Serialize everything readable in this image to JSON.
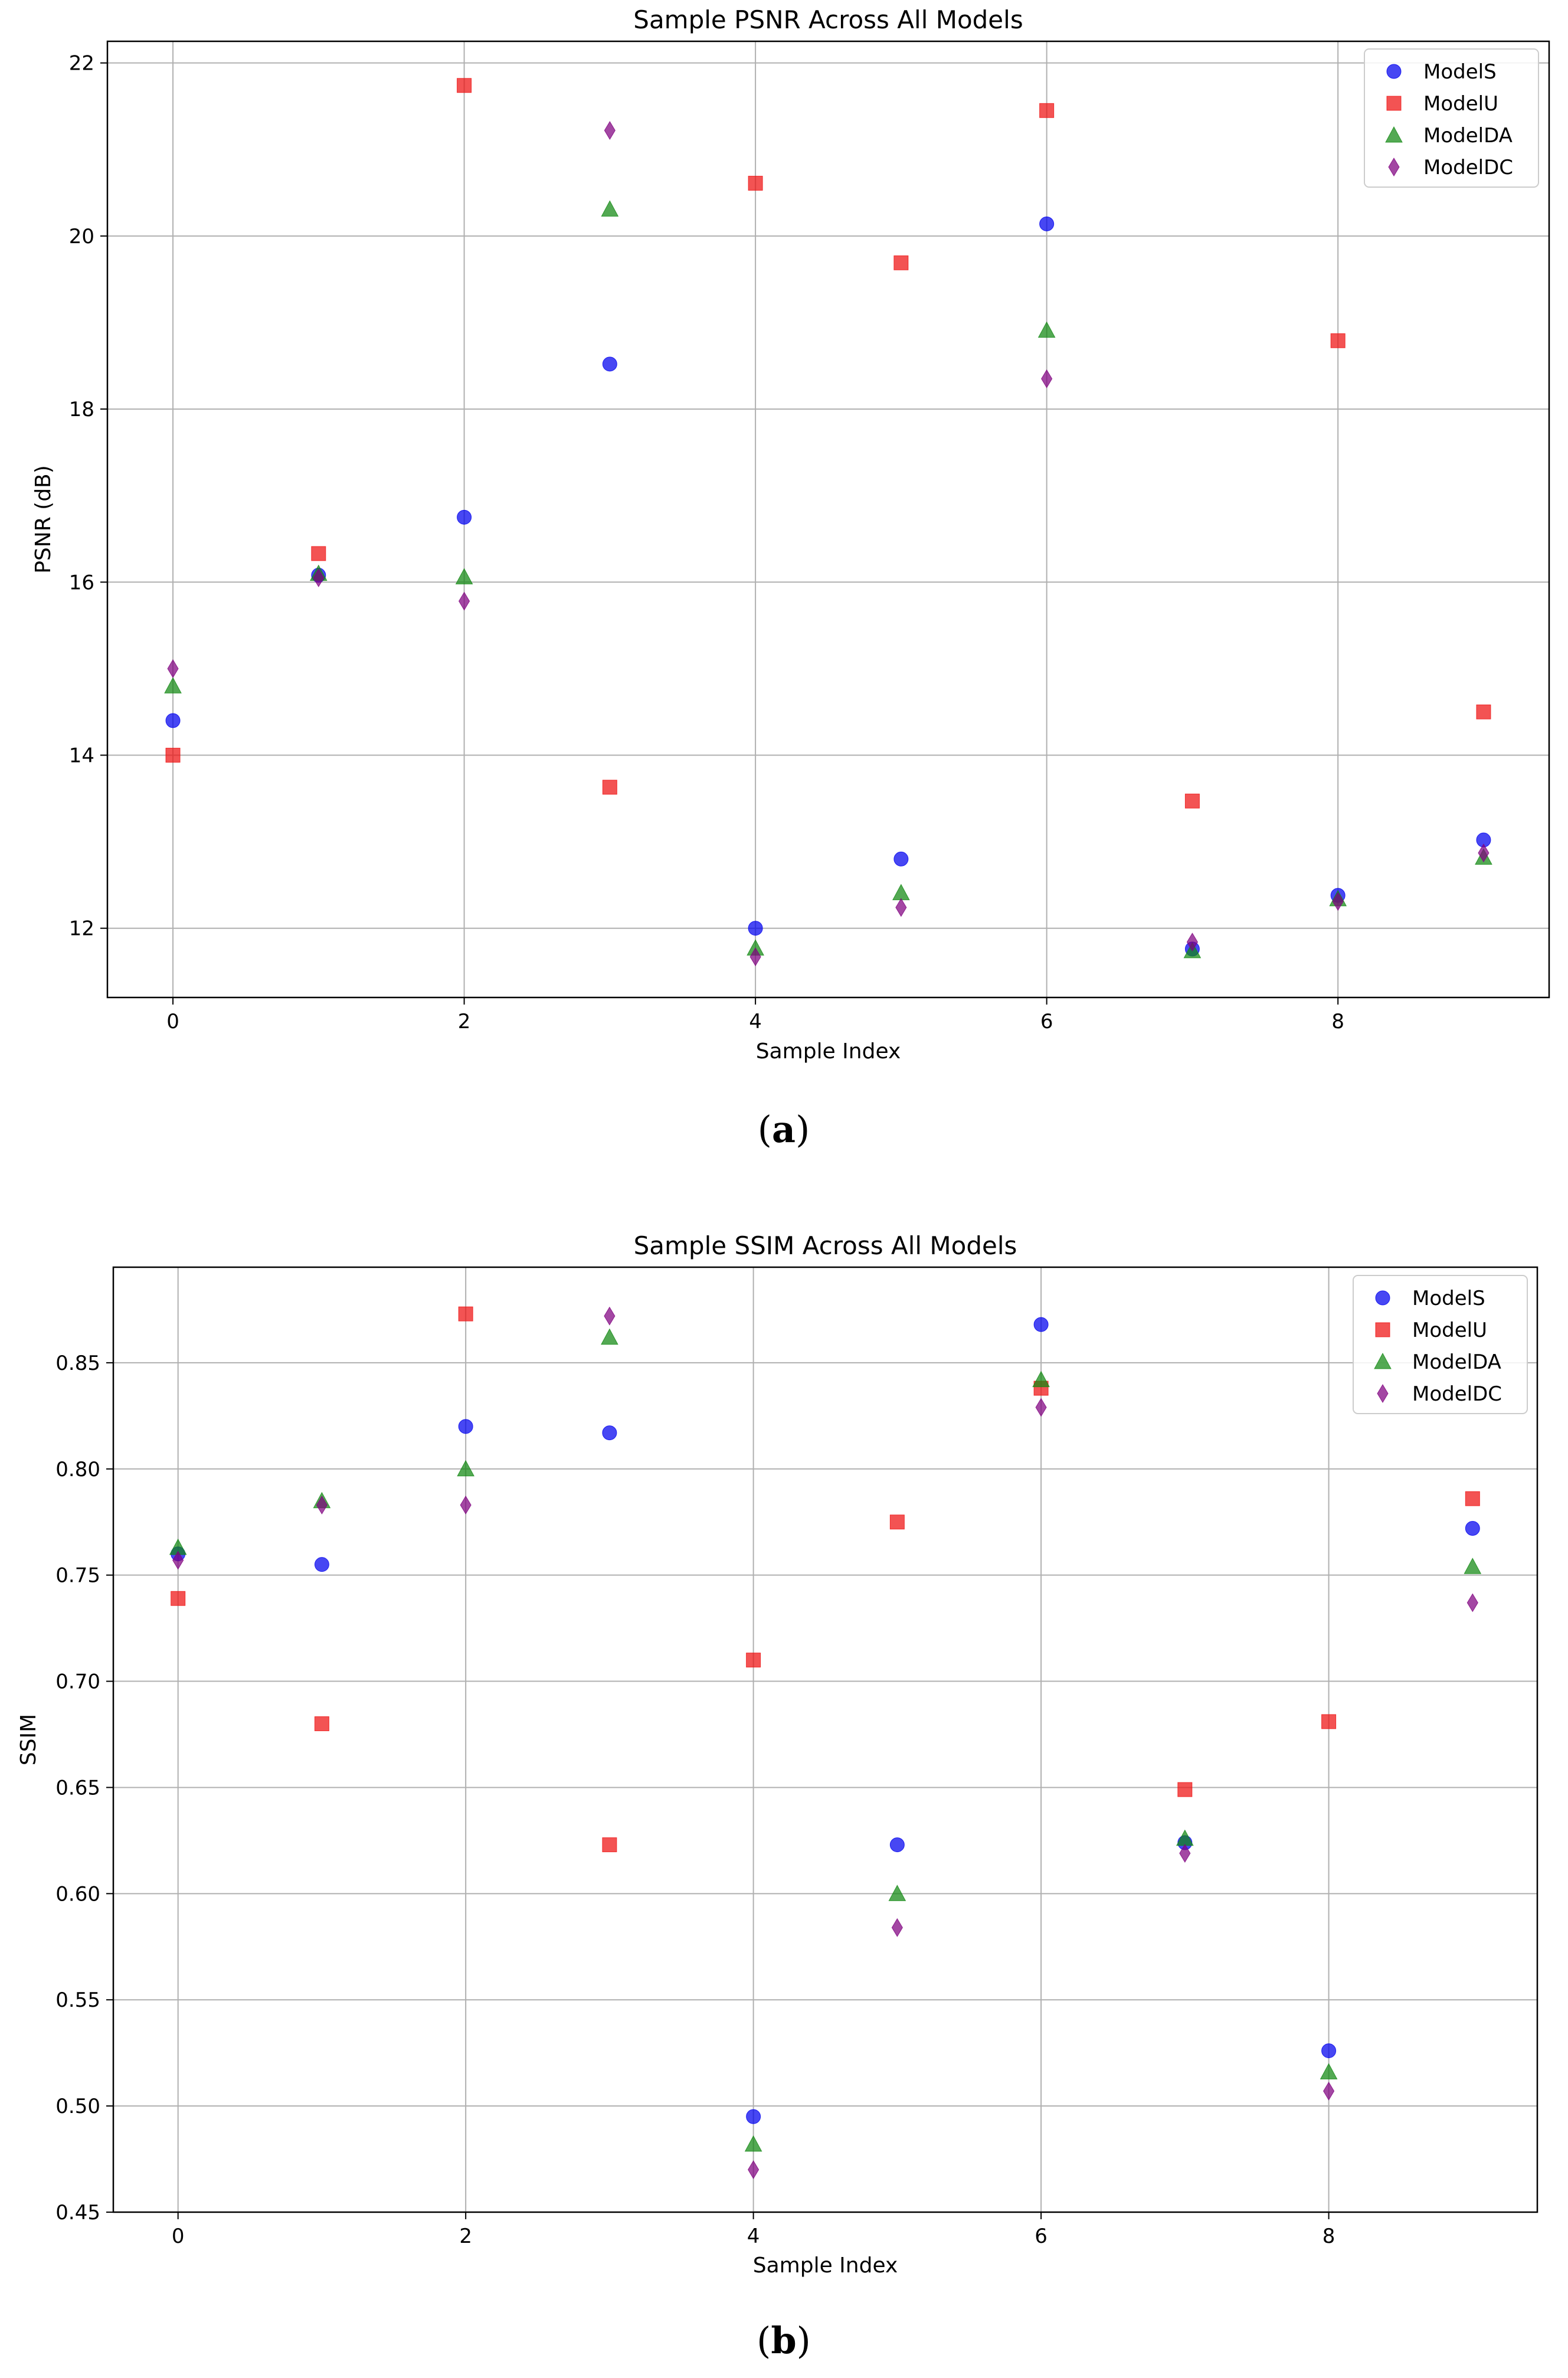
{
  "colors": {
    "ModelS": "#0000ee",
    "ModelU": "#ee1111",
    "ModelDA": "#118811",
    "ModelDC": "#800080",
    "grid": "#b0b0b0",
    "axis": "#000000"
  },
  "chart_data": [
    {
      "type": "scatter",
      "title": "Sample PSNR Across All Models",
      "xlabel": "Sample Index",
      "ylabel": "PSNR (dB)",
      "xlim": [
        -0.45,
        9.45
      ],
      "ylim": [
        11.2,
        22.25
      ],
      "xticks": [
        0,
        2,
        4,
        6,
        8
      ],
      "yticks": [
        12,
        14,
        16,
        18,
        20,
        22
      ],
      "grid": true,
      "legend_position": "top-right",
      "caption_prefix": "(",
      "caption_letter": "a",
      "caption_suffix": ")",
      "x": [
        0,
        1,
        2,
        3,
        4,
        5,
        6,
        7,
        8,
        9
      ],
      "series": [
        {
          "name": "ModelS",
          "marker": "circle",
          "values": [
            14.4,
            16.08,
            16.75,
            18.52,
            12.0,
            12.8,
            20.14,
            11.76,
            12.38,
            13.02
          ]
        },
        {
          "name": "ModelU",
          "marker": "square",
          "values": [
            14.0,
            16.33,
            21.74,
            13.63,
            20.61,
            19.69,
            21.45,
            13.47,
            18.79,
            14.5
          ]
        },
        {
          "name": "ModelDA",
          "marker": "triangle",
          "values": [
            14.8,
            16.1,
            16.06,
            20.31,
            11.77,
            12.41,
            18.91,
            11.74,
            12.34,
            12.82
          ]
        },
        {
          "name": "ModelDC",
          "marker": "diamond",
          "values": [
            15.0,
            16.05,
            15.78,
            21.22,
            11.67,
            12.24,
            18.35,
            11.84,
            12.31,
            12.87
          ]
        }
      ]
    },
    {
      "type": "scatter",
      "title": "Sample SSIM Across All Models",
      "xlabel": "Sample Index",
      "ylabel": "SSIM",
      "xlim": [
        -0.45,
        9.45
      ],
      "ylim": [
        0.45,
        0.895
      ],
      "xticks": [
        0,
        2,
        4,
        6,
        8
      ],
      "yticks": [
        0.45,
        0.5,
        0.55,
        0.6,
        0.65,
        0.7,
        0.75,
        0.8,
        0.85
      ],
      "ytick_labels": [
        "0.45",
        "0.50",
        "0.55",
        "0.60",
        "0.65",
        "0.70",
        "0.75",
        "0.80",
        "0.85"
      ],
      "grid": true,
      "legend_position": "top-right",
      "caption_prefix": "(",
      "caption_letter": "b",
      "caption_suffix": ")",
      "x": [
        0,
        1,
        2,
        3,
        4,
        5,
        6,
        7,
        8,
        9
      ],
      "series": [
        {
          "name": "ModelS",
          "marker": "circle",
          "values": [
            0.76,
            0.755,
            0.82,
            0.817,
            0.495,
            0.623,
            0.868,
            0.624,
            0.526,
            0.772
          ]
        },
        {
          "name": "ModelU",
          "marker": "square",
          "values": [
            0.739,
            0.68,
            0.873,
            0.623,
            0.71,
            0.775,
            0.838,
            0.649,
            0.681,
            0.786
          ]
        },
        {
          "name": "ModelDA",
          "marker": "triangle",
          "values": [
            0.763,
            0.785,
            0.8,
            0.862,
            0.482,
            0.6,
            0.842,
            0.626,
            0.516,
            0.754
          ]
        },
        {
          "name": "ModelDC",
          "marker": "diamond",
          "values": [
            0.757,
            0.783,
            0.783,
            0.872,
            0.47,
            0.584,
            0.829,
            0.619,
            0.507,
            0.737
          ]
        }
      ]
    }
  ]
}
